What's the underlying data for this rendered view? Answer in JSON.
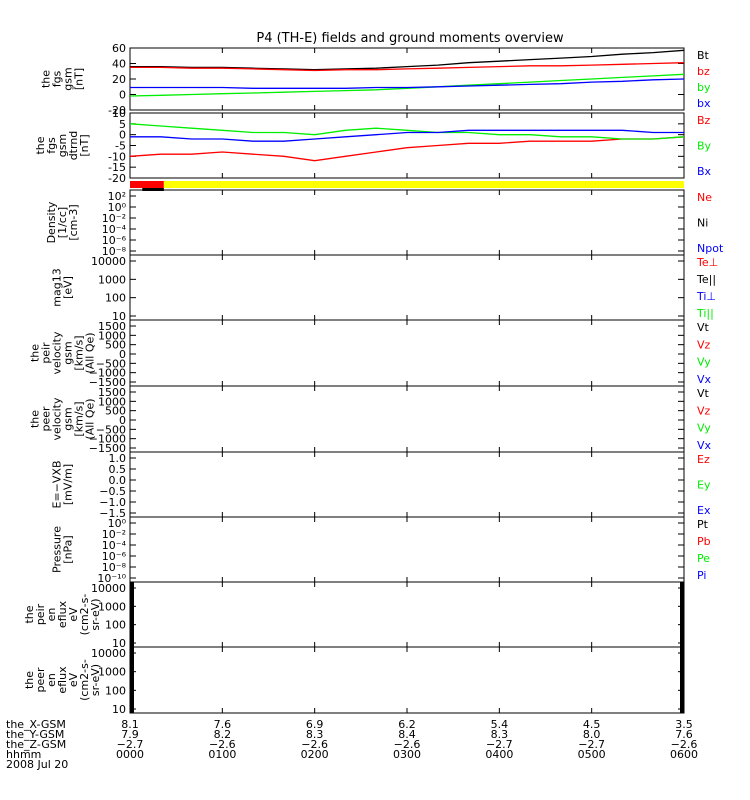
{
  "title": "P4 (TH-E) fields and ground moments overview",
  "colors": {
    "black": "#000000",
    "red": "#ff0000",
    "green": "#00ee00",
    "blue": "#0000ff",
    "yellow": "#ffff00"
  },
  "chart_data": [
    {
      "type": "line",
      "panel": "fgs_gsm",
      "ylabel_lines": [
        "the",
        "fgs",
        "gsm",
        "[nT]"
      ],
      "ylim": [
        -20,
        60
      ],
      "yticks": [
        {
          "v": 60,
          "label": "60"
        },
        {
          "v": 40,
          "label": "40"
        },
        {
          "v": 20,
          "label": "20"
        },
        {
          "v": 0,
          "label": "0"
        },
        {
          "v": -20,
          "label": "-20"
        }
      ],
      "legend": [
        {
          "name": "Bt",
          "color": "#000000"
        },
        {
          "name": "bz",
          "color": "#ff0000"
        },
        {
          "name": "by",
          "color": "#00ee00"
        },
        {
          "name": "bx",
          "color": "#0000ff"
        }
      ],
      "x": [
        0,
        20,
        40,
        60,
        80,
        100,
        120,
        140,
        160,
        180,
        200,
        220,
        240,
        260,
        280,
        300,
        320,
        340,
        360
      ],
      "series": [
        {
          "name": "Bt",
          "color": "#000000",
          "values": [
            36,
            36,
            35,
            35,
            34,
            33,
            32,
            33,
            34,
            36,
            38,
            41,
            43,
            45,
            47,
            49,
            52,
            54,
            57
          ]
        },
        {
          "name": "bz",
          "color": "#ff0000",
          "values": [
            35,
            35,
            34,
            34,
            33,
            32,
            31,
            32,
            32,
            33,
            34,
            35,
            36,
            37,
            37,
            38,
            39,
            40,
            41
          ]
        },
        {
          "name": "by",
          "color": "#00ee00",
          "values": [
            -2,
            -1,
            0,
            1,
            2,
            3,
            4,
            5,
            6,
            8,
            10,
            12,
            14,
            16,
            18,
            20,
            22,
            24,
            26
          ]
        },
        {
          "name": "bx",
          "color": "#0000ff",
          "values": [
            9,
            9,
            9,
            9,
            8,
            8,
            8,
            8,
            9,
            9,
            10,
            11,
            12,
            13,
            14,
            16,
            17,
            19,
            20
          ]
        }
      ]
    },
    {
      "type": "line",
      "panel": "fgs_gsm_dtrnd",
      "ylabel_lines": [
        "the",
        "fgs",
        "gsm",
        "dtrnd",
        "[nT]"
      ],
      "ylim": [
        -20,
        10
      ],
      "yticks": [
        {
          "v": 10,
          "label": "10"
        },
        {
          "v": 5,
          "label": "5"
        },
        {
          "v": 0,
          "label": "0"
        },
        {
          "v": -5,
          "label": "-5"
        },
        {
          "v": -10,
          "label": "-10"
        },
        {
          "v": -15,
          "label": "-15"
        },
        {
          "v": -20,
          "label": "-20"
        }
      ],
      "legend": [
        {
          "name": "Bz",
          "color": "#ff0000"
        },
        {
          "name": "By",
          "color": "#00ee00"
        },
        {
          "name": "Bx",
          "color": "#0000ff"
        }
      ],
      "x": [
        0,
        20,
        40,
        60,
        80,
        100,
        120,
        140,
        160,
        180,
        200,
        220,
        240,
        260,
        280,
        300,
        320,
        340,
        360
      ],
      "series": [
        {
          "name": "Bz",
          "color": "#ff0000",
          "values": [
            -10,
            -9,
            -9,
            -8,
            -9,
            -10,
            -12,
            -10,
            -8,
            -6,
            -5,
            -4,
            -4,
            -3,
            -3,
            -3,
            -2,
            -2,
            -1
          ]
        },
        {
          "name": "By",
          "color": "#00ee00",
          "values": [
            5,
            4,
            3,
            2,
            1,
            1,
            0,
            2,
            3,
            2,
            1,
            1,
            0,
            0,
            -1,
            -1,
            -2,
            -2,
            -1
          ]
        },
        {
          "name": "Bx",
          "color": "#0000ff",
          "values": [
            -1,
            -1,
            -2,
            -2,
            -3,
            -3,
            -2,
            -1,
            0,
            1,
            1,
            2,
            2,
            2,
            2,
            2,
            2,
            1,
            1
          ]
        }
      ]
    },
    {
      "type": "bar",
      "panel": "quality_flags",
      "segments": [
        {
          "from": 0,
          "to": 22,
          "color": "#ff0000"
        },
        {
          "from": 22,
          "to": 360,
          "color": "#ffff00"
        }
      ]
    },
    {
      "type": "line",
      "panel": "density",
      "ylabel_lines": [
        "Density",
        "[1/cc]",
        "[cm-3]"
      ],
      "yticks": [
        {
          "label": "10²"
        },
        {
          "label": "10⁰"
        },
        {
          "label": "10⁻²"
        },
        {
          "label": "10⁻⁴"
        },
        {
          "label": "10⁻⁶"
        },
        {
          "label": "10⁻⁸"
        }
      ],
      "legend": [
        {
          "name": "Ne",
          "color": "#ff0000"
        },
        {
          "name": "Ni",
          "color": "#000000"
        },
        {
          "name": "Npot",
          "color": "#0000ff"
        }
      ]
    },
    {
      "type": "line",
      "panel": "temperature",
      "ylabel_lines": [
        "mag13",
        "[eV]"
      ],
      "yticks": [
        {
          "label": "10000"
        },
        {
          "label": "1000"
        },
        {
          "label": "100"
        },
        {
          "label": "10"
        }
      ],
      "legend": [
        {
          "name": "Te⊥",
          "color": "#ff0000"
        },
        {
          "name": "Te||",
          "color": "#000000"
        },
        {
          "name": "Ti⊥",
          "color": "#0000ff"
        },
        {
          "name": "Ti||",
          "color": "#00ee00"
        }
      ]
    },
    {
      "type": "line",
      "panel": "peir_velocity",
      "ylabel_lines": [
        "the",
        "peir",
        "velocity",
        "gsm",
        "[km/s]",
        "(All Qe)"
      ],
      "yticks": [
        {
          "label": "1500"
        },
        {
          "label": "1000"
        },
        {
          "label": "500"
        },
        {
          "label": "0"
        },
        {
          "label": "−500"
        },
        {
          "label": "−1000"
        },
        {
          "label": "−1500"
        }
      ],
      "legend": [
        {
          "name": "Vt",
          "color": "#000000"
        },
        {
          "name": "Vz",
          "color": "#ff0000"
        },
        {
          "name": "Vy",
          "color": "#00ee00"
        },
        {
          "name": "Vx",
          "color": "#0000ff"
        }
      ]
    },
    {
      "type": "line",
      "panel": "peer_velocity",
      "ylabel_lines": [
        "the",
        "peer",
        "velocity",
        "gsm",
        "[km/s]",
        "(All Qe)"
      ],
      "yticks": [
        {
          "label": "1500"
        },
        {
          "label": "1000"
        },
        {
          "label": "500"
        },
        {
          "label": "0"
        },
        {
          "label": "−500"
        },
        {
          "label": "−1000"
        },
        {
          "label": "−1500"
        }
      ],
      "legend": [
        {
          "name": "Vt",
          "color": "#000000"
        },
        {
          "name": "Vz",
          "color": "#ff0000"
        },
        {
          "name": "Vy",
          "color": "#00ee00"
        },
        {
          "name": "Vx",
          "color": "#0000ff"
        }
      ]
    },
    {
      "type": "line",
      "panel": "efield",
      "ylabel_lines": [
        "E=−VXB",
        "[mV/m]"
      ],
      "yticks": [
        {
          "label": "1.0"
        },
        {
          "label": "0.5"
        },
        {
          "label": "0.0"
        },
        {
          "label": "−0.5"
        },
        {
          "label": "−1.0"
        },
        {
          "label": "−1.5"
        }
      ],
      "legend": [
        {
          "name": "Ez",
          "color": "#ff0000"
        },
        {
          "name": "Ey",
          "color": "#00ee00"
        },
        {
          "name": "Ex",
          "color": "#0000ff"
        }
      ]
    },
    {
      "type": "line",
      "panel": "pressure",
      "ylabel_lines": [
        "Pressure",
        "[nPa]"
      ],
      "yticks": [
        {
          "label": "10⁰"
        },
        {
          "label": "10⁻²"
        },
        {
          "label": "10⁻⁴"
        },
        {
          "label": "10⁻⁶"
        },
        {
          "label": "10⁻⁸"
        },
        {
          "label": "10⁻¹⁰"
        }
      ],
      "legend": [
        {
          "name": "Pt",
          "color": "#000000"
        },
        {
          "name": "Pb",
          "color": "#ff0000"
        },
        {
          "name": "Pe",
          "color": "#00ee00"
        },
        {
          "name": "Pi",
          "color": "#0000ff"
        }
      ]
    },
    {
      "type": "heatmap",
      "panel": "peir_spectrogram",
      "ylabel_lines": [
        "the",
        "peir",
        "en",
        "eflux",
        "eV",
        "(cm2-s-",
        "sr-eV)"
      ],
      "yticks": [
        {
          "label": "10000"
        },
        {
          "label": "1000"
        },
        {
          "label": "100"
        },
        {
          "label": "10"
        }
      ]
    },
    {
      "type": "heatmap",
      "panel": "peer_spectrogram",
      "ylabel_lines": [
        "the",
        "peer",
        "en",
        "eflux",
        "eV",
        "(cm2-s-",
        "sr-eV)"
      ],
      "yticks": [
        {
          "label": "10000"
        },
        {
          "label": "1000"
        },
        {
          "label": "100"
        },
        {
          "label": "10"
        }
      ]
    }
  ],
  "x_axis": {
    "row_labels": [
      "the_X-GSM",
      "the_Y-GSM",
      "the_Z-GSM",
      "hhmm",
      "2008 Jul 20"
    ],
    "ticks": [
      {
        "x": 0,
        "vals": [
          "8.1",
          "7.9",
          "−2.7",
          "0000"
        ]
      },
      {
        "x": 60,
        "vals": [
          "7.6",
          "8.2",
          "−2.6",
          "0100"
        ]
      },
      {
        "x": 120,
        "vals": [
          "6.9",
          "8.3",
          "−2.6",
          "0200"
        ]
      },
      {
        "x": 180,
        "vals": [
          "6.2",
          "8.4",
          "−2.6",
          "0300"
        ]
      },
      {
        "x": 240,
        "vals": [
          "5.4",
          "8.3",
          "−2.7",
          "0400"
        ]
      },
      {
        "x": 300,
        "vals": [
          "4.5",
          "8.0",
          "−2.7",
          "0500"
        ]
      },
      {
        "x": 360,
        "vals": [
          "3.5",
          "7.6",
          "−2.6",
          "0600"
        ]
      }
    ]
  }
}
